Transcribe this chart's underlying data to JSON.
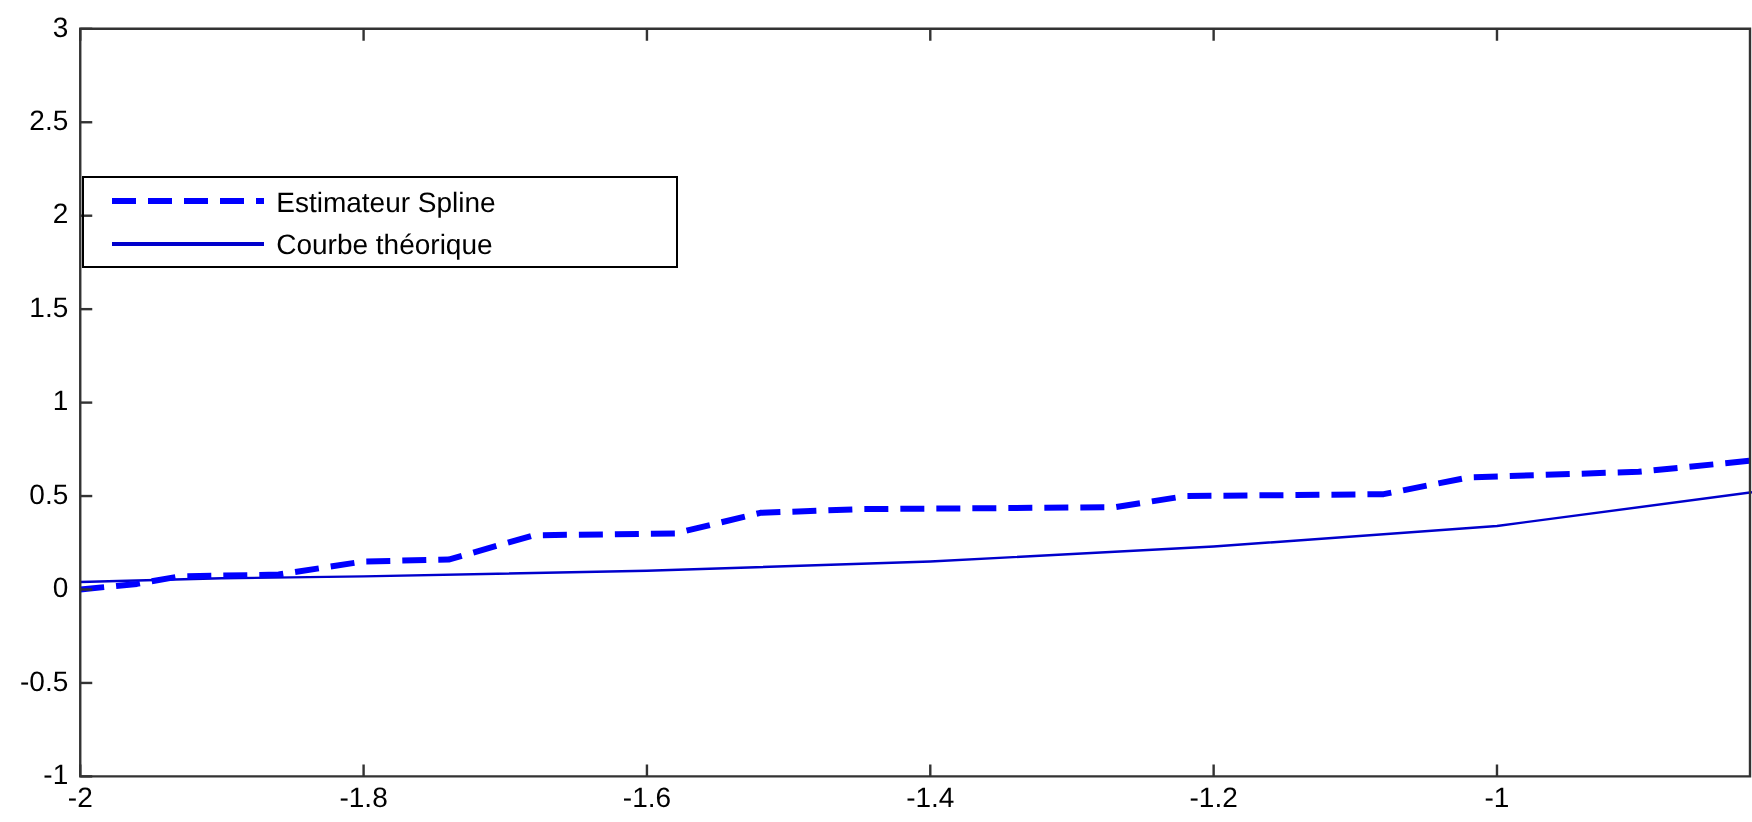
{
  "chart_data": {
    "type": "line",
    "xlim": [
      -2,
      -0.82
    ],
    "xticks": [
      -2,
      -1.8,
      -1.6,
      -1.4,
      -1.2,
      -1
    ],
    "ylim": [
      -1,
      3
    ],
    "yticks": [
      -1,
      -0.5,
      0,
      0.5,
      1,
      1.5,
      2,
      2.5,
      3
    ],
    "grid": false,
    "legend": "top left",
    "marker": "none",
    "series": [
      {
        "name": "Estimateur Spline",
        "color": "#0000ff",
        "line_style": "dashed",
        "x": [
          -2,
          -1.96,
          -1.93,
          -1.86,
          -1.8,
          -1.74,
          -1.68,
          -1.58,
          -1.52,
          -1.45,
          -1.27,
          -1.22,
          -1.08,
          -1.02,
          -0.9,
          -0.82
        ],
        "values": [
          0,
          0.03,
          0.07,
          0.08,
          0.15,
          0.16,
          0.29,
          0.3,
          0.41,
          0.43,
          0.44,
          0.5,
          0.51,
          0.6,
          0.63,
          0.69
        ]
      },
      {
        "name": "Courbe théorique",
        "color": "#0000cc",
        "line_style": "solid",
        "x": [
          -2,
          -1.9,
          -1.8,
          -1.6,
          -1.4,
          -1.2,
          -1,
          -0.82
        ],
        "values": [
          0.04,
          0.06,
          0.07,
          0.1,
          0.15,
          0.23,
          0.34,
          0.52
        ]
      }
    ]
  }
}
